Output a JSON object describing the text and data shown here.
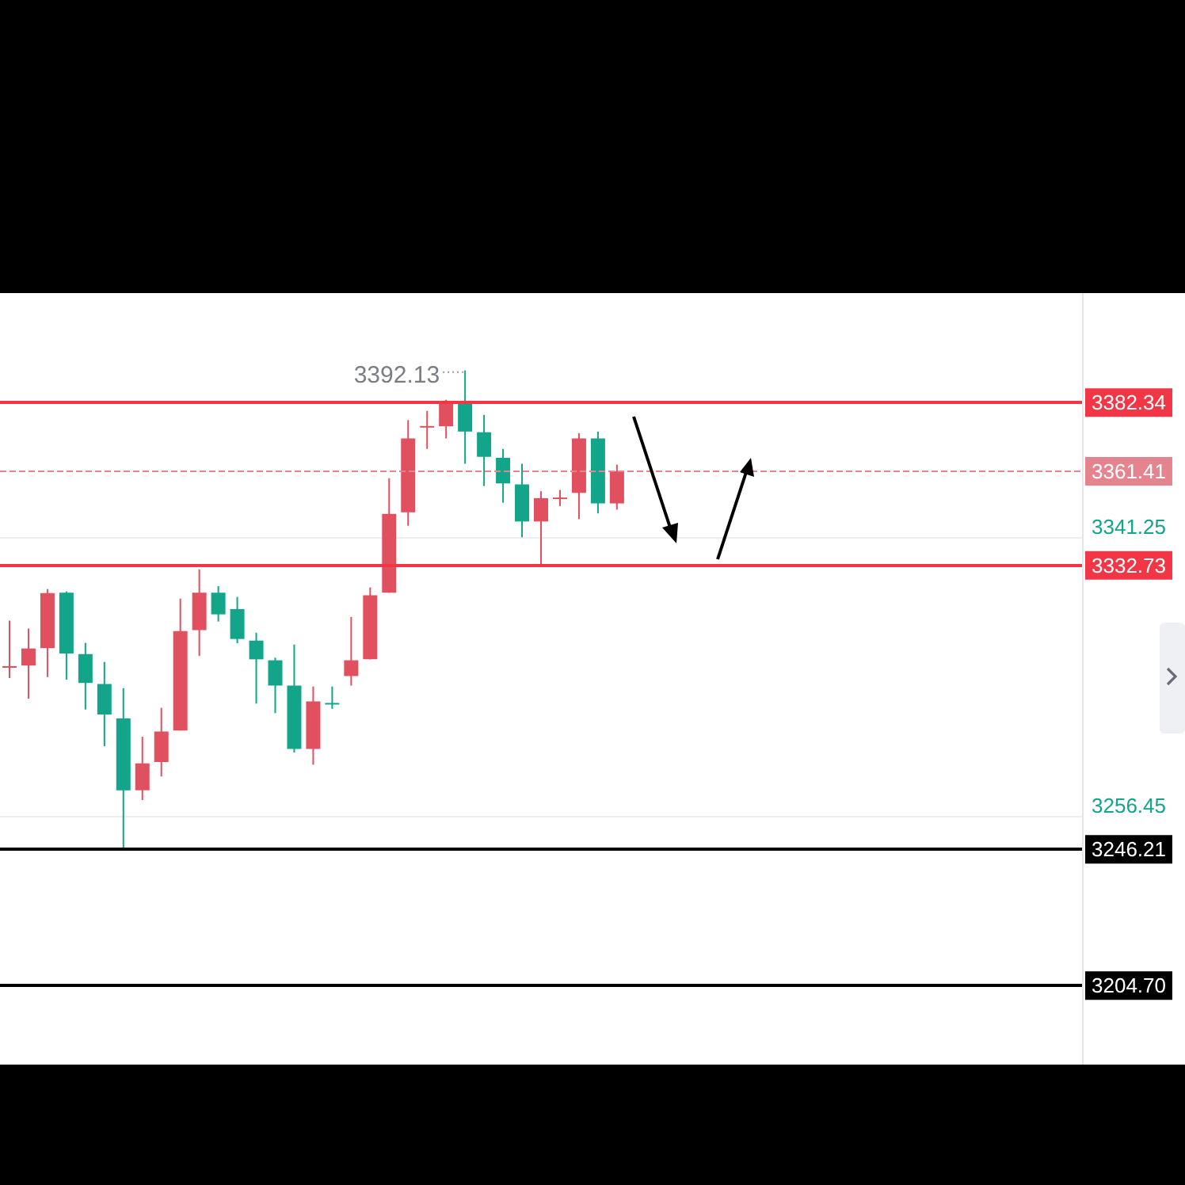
{
  "chart_data": {
    "type": "candlestick",
    "categories": [
      null,
      null,
      null,
      null,
      null,
      null,
      null,
      null,
      null,
      null,
      null,
      null,
      null,
      null,
      null,
      null,
      null,
      null,
      null,
      null,
      null,
      null,
      null,
      null,
      null,
      null,
      null,
      null,
      null,
      null,
      null,
      null,
      null,
      null,
      null,
      null,
      null,
      null,
      null,
      null,
      null,
      null,
      null,
      null,
      null,
      null,
      null,
      null,
      null,
      null,
      null,
      null,
      null,
      null,
      null,
      null,
      null
    ],
    "ohlc": [
      [
        3301.5,
        3315.9,
        3298.4,
        3302.0
      ],
      [
        3302.2,
        3313.5,
        3292.1,
        3307.4
      ],
      [
        3307.5,
        3325.5,
        3298.7,
        3324.3
      ],
      [
        3324.4,
        3324.8,
        3297.9,
        3305.9
      ],
      [
        3305.7,
        3309.1,
        3288.8,
        3296.9
      ],
      [
        3296.6,
        3303.3,
        3277.6,
        3287.3
      ],
      [
        3286.1,
        3295.3,
        3246.2,
        3264.2
      ],
      [
        3264.2,
        3280.5,
        3261.2,
        3272.4
      ],
      [
        3272.8,
        3289.3,
        3268.4,
        3282.1
      ],
      [
        3282.4,
        3322.6,
        3282.4,
        3312.7
      ],
      [
        3313.0,
        3331.5,
        3305.1,
        3324.4
      ],
      [
        3324.4,
        3326.4,
        3315.6,
        3317.8
      ],
      [
        3319.4,
        3323.1,
        3309.0,
        3310.3
      ],
      [
        3309.8,
        3312.2,
        3290.6,
        3304.1
      ],
      [
        3303.8,
        3304.6,
        3287.7,
        3296.1
      ],
      [
        3296.1,
        3308.6,
        3275.7,
        3276.8
      ],
      [
        3276.8,
        3295.8,
        3272.0,
        3291.3
      ],
      [
        3290.8,
        3295.8,
        3289.0,
        3290.4
      ],
      [
        3299.0,
        3317.0,
        3296.1,
        3303.8
      ],
      [
        3304.1,
        3326.0,
        3304.1,
        3323.6
      ],
      [
        3324.4,
        3359.3,
        3324.4,
        3348.4
      ],
      [
        3348.9,
        3377.0,
        3344.8,
        3371.4
      ],
      [
        3374.8,
        3379.8,
        3368.2,
        3375.2
      ],
      [
        3375.1,
        3383.2,
        3371.4,
        3382.7
      ],
      [
        3382.7,
        3392.13,
        3363.7,
        3373.5
      ],
      [
        3373.3,
        3378.6,
        3356.9,
        3365.8
      ],
      [
        3365.5,
        3368.2,
        3351.8,
        3357.7
      ],
      [
        3357.4,
        3363.7,
        3341.3,
        3346.1
      ],
      [
        3346.1,
        3355.3,
        3332.73,
        3353.2
      ],
      [
        3353.0,
        3355.7,
        3350.8,
        3353.4
      ],
      [
        3354.8,
        3373.0,
        3346.8,
        3371.4
      ],
      [
        3371.4,
        3373.5,
        3348.6,
        3351.6
      ],
      [
        3351.6,
        3363.4,
        3349.7,
        3361.41
      ],
      null,
      null,
      null,
      null,
      null,
      null,
      null,
      null,
      null,
      null,
      null,
      null,
      null,
      null,
      null,
      null,
      null,
      null,
      null,
      null,
      null,
      null,
      null,
      null
    ],
    "colors": [
      "#e0505e",
      "#e0505e",
      "#e0505e",
      "#12a58a",
      "#12a58a",
      "#12a58a",
      "#12a58a",
      "#e0505e",
      "#e0505e",
      "#e0505e",
      "#e0505e",
      "#12a58a",
      "#12a58a",
      "#12a58a",
      "#12a58a",
      "#12a58a",
      "#e0505e",
      "#12a58a",
      "#e0505e",
      "#e0505e",
      "#e0505e",
      "#e0505e",
      "#e0505e",
      "#e0505e",
      "#12a58a",
      "#12a58a",
      "#12a58a",
      "#12a58a",
      "#e0505e",
      "#e0505e",
      "#e0505e",
      "#12a58a",
      "#e0505e",
      null,
      null,
      null,
      null,
      null,
      null,
      null,
      null,
      null,
      null,
      null,
      null,
      null,
      null,
      null,
      null,
      null,
      null,
      null,
      null,
      null,
      null,
      null,
      null
    ],
    "ylim": [
      3180.6,
      3415.7
    ],
    "yticks": [
      3256.45,
      3341.25
    ],
    "grid": "y",
    "annotations": [
      "3392.13"
    ],
    "ref_lines": [
      {
        "axis": "y",
        "value": 3382.34,
        "label": "3382.34",
        "color": "#f23645",
        "line_style": "solid"
      },
      {
        "axis": "y",
        "value": 3361.41,
        "label": "3361.41",
        "color": "#e5848e",
        "line_style": "dashed"
      },
      {
        "axis": "y",
        "value": 3332.73,
        "label": "3332.73",
        "color": "#f23645",
        "line_style": "solid"
      },
      {
        "axis": "y",
        "value": 3246.21,
        "label": "3246.21",
        "color": "#000000",
        "line_style": "solid"
      },
      {
        "axis": "y",
        "value": 3204.7,
        "label": "3204.70",
        "color": "#000000",
        "line_style": "solid"
      }
    ]
  }
}
